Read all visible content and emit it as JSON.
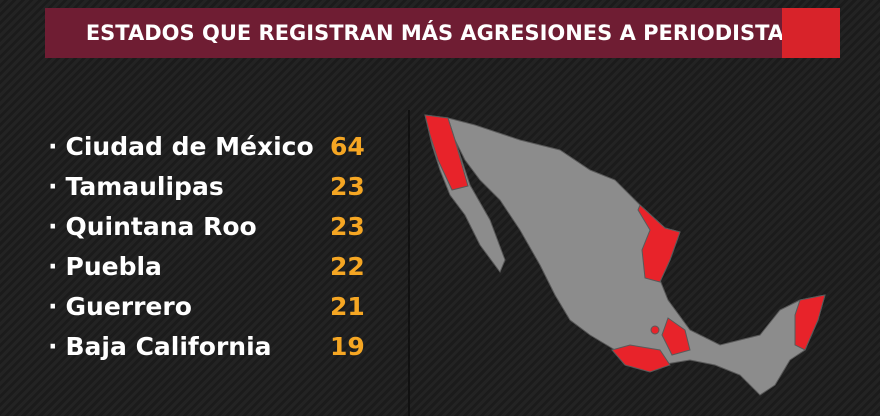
{
  "header": {
    "title": "ESTADOS QUE REGISTRAN MÁS AGRESIONES A PERIODISTAS"
  },
  "list": [
    {
      "state": "Ciudad de México",
      "count": 64
    },
    {
      "state": "Tamaulipas",
      "count": 23
    },
    {
      "state": "Quintana Roo",
      "count": 23
    },
    {
      "state": "Puebla",
      "count": 22
    },
    {
      "state": "Guerrero",
      "count": 21
    },
    {
      "state": "Baja California",
      "count": 19
    }
  ]
}
